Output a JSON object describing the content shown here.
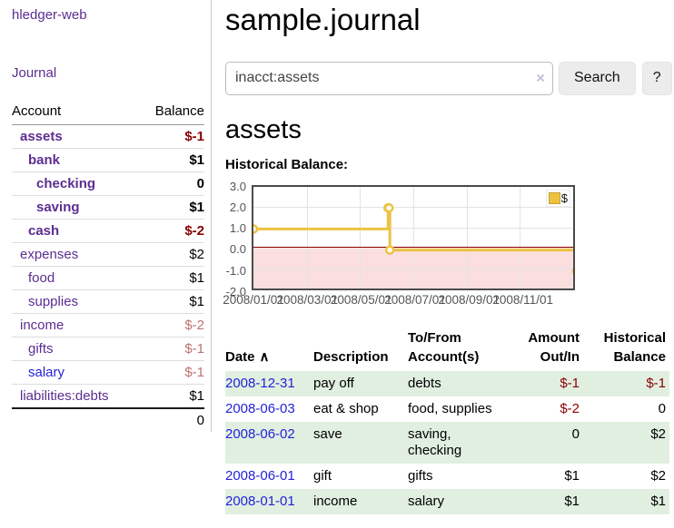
{
  "colors": {
    "link_purple": "#5c2d91",
    "link_blue": "#2323d8",
    "negative_strong": "#8b0000",
    "negative_soft": "#bf7272",
    "row_stripe_green": "#e1efe1",
    "button_bg": "#ececec"
  },
  "sidebar": {
    "brand": "hledger-web",
    "nav_journal": "Journal",
    "accounts": {
      "headers": {
        "account": "Account",
        "balance": "Balance"
      },
      "rows": [
        {
          "name": "assets",
          "balance": "$-1"
        },
        {
          "name": "bank",
          "balance": "$1"
        },
        {
          "name": "checking",
          "balance": "0"
        },
        {
          "name": "saving",
          "balance": "$1"
        },
        {
          "name": "cash",
          "balance": "$-2"
        },
        {
          "name": "expenses",
          "balance": "$2"
        },
        {
          "name": "food",
          "balance": "$1"
        },
        {
          "name": "supplies",
          "balance": "$1"
        },
        {
          "name": "income",
          "balance": "$-2"
        },
        {
          "name": "gifts",
          "balance": "$-1"
        },
        {
          "name": "salary",
          "balance": "$-1"
        },
        {
          "name": "liabilities:debts",
          "balance": "$1"
        }
      ],
      "total": "0"
    }
  },
  "main": {
    "title": "sample.journal",
    "search": {
      "value": "inacct:assets",
      "clear_icon": "×",
      "search_button": "Search",
      "help_button": "?"
    },
    "account_heading": "assets",
    "section_label": "Historical Balance:"
  },
  "chart_data": {
    "type": "line",
    "step": true,
    "title": "Historical Balance",
    "series": [
      {
        "name": "$",
        "color": "#edc240",
        "points": [
          {
            "x": "2008-01-01",
            "y": 1
          },
          {
            "x": "2008-06-01",
            "y": 2
          },
          {
            "x": "2008-06-02",
            "y": 2
          },
          {
            "x": "2008-06-03",
            "y": 0
          },
          {
            "x": "2008-12-31",
            "y": -1
          }
        ]
      }
    ],
    "x_range": [
      "2008-01-01",
      "2008-12-31"
    ],
    "y_range": [
      -2,
      3
    ],
    "x_ticks": [
      "2008/01/01",
      "2008/03/01",
      "2008/05/01",
      "2008/07/01",
      "2008/09/01",
      "2008/11/01"
    ],
    "y_ticks": [
      "3.0",
      "2.0",
      "1.0",
      "0.0",
      "-1.0",
      "-2.0"
    ],
    "legend": {
      "label": "$",
      "position": "top-right"
    },
    "grid": true,
    "negative_region_color": "#fbdfdf",
    "zero_line_color": "#8b0000"
  },
  "register": {
    "headers": {
      "date": "Date",
      "sort_icon": "∧",
      "description": "Description",
      "account": "To/From Account(s)",
      "amount": "Amount Out/In",
      "balance": "Historical Balance"
    },
    "rows": [
      {
        "date": "2008-12-31",
        "description": "pay off",
        "account": "debts",
        "amount": "$-1",
        "balance": "$-1"
      },
      {
        "date": "2008-06-03",
        "description": "eat & shop",
        "account": "food, supplies",
        "amount": "$-2",
        "balance": "0"
      },
      {
        "date": "2008-06-02",
        "description": "save",
        "account": "saving, checking",
        "amount": "0",
        "balance": "$2"
      },
      {
        "date": "2008-06-01",
        "description": "gift",
        "account": "gifts",
        "amount": "$1",
        "balance": "$2"
      },
      {
        "date": "2008-01-01",
        "description": "income",
        "account": "salary",
        "amount": "$1",
        "balance": "$1"
      }
    ]
  }
}
